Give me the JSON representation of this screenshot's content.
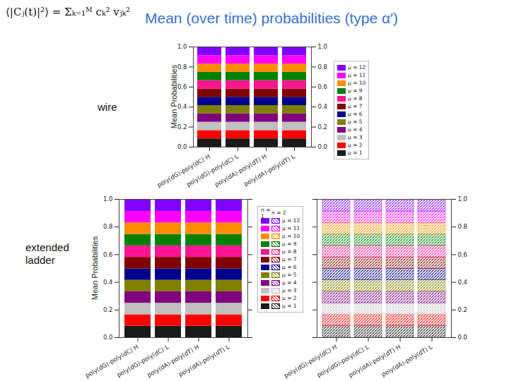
{
  "title": "Mean (over time) probabilities (type α′)",
  "formula": "⟨|Cⱼ(t)|²⟩ = Σₖ₌₁ᴹ cₖ² vⱼₖ²",
  "chart_data": [
    {
      "type": "bar",
      "stacked": true,
      "title": "wire",
      "ylabel": "Mean Probabilities",
      "categories": [
        "poly(dG)-poly(dC) H",
        "poly(dG)-poly(dC) L",
        "poly(dA)-poly(dT) H",
        "poly(dA)-poly(dT) L"
      ],
      "ylim": [
        0,
        1
      ],
      "yticks": [
        {
          "value": 0,
          "label": "0.0"
        },
        0.2,
        0.4,
        0.6,
        0.8,
        {
          "value": 1,
          "label": "1.0"
        }
      ],
      "series": [
        {
          "name": "μ = 1",
          "color": "#1a1a1a",
          "values": [
            0.083,
            0.083,
            0.083,
            0.083
          ]
        },
        {
          "name": "μ = 2",
          "color": "#ff0000",
          "values": [
            0.083,
            0.083,
            0.083,
            0.083
          ]
        },
        {
          "name": "μ = 3",
          "color": "#c0c0c0",
          "values": [
            0.083,
            0.083,
            0.083,
            0.083
          ]
        },
        {
          "name": "μ = 4",
          "color": "#800080",
          "values": [
            0.083,
            0.083,
            0.083,
            0.083
          ]
        },
        {
          "name": "μ = 5",
          "color": "#808000",
          "values": [
            0.083,
            0.083,
            0.083,
            0.083
          ]
        },
        {
          "name": "μ = 6",
          "color": "#00008b",
          "values": [
            0.083,
            0.083,
            0.083,
            0.083
          ]
        },
        {
          "name": "μ = 7",
          "color": "#800000",
          "values": [
            0.083,
            0.083,
            0.083,
            0.083
          ]
        },
        {
          "name": "μ = 8",
          "color": "#ff1493",
          "values": [
            0.083,
            0.083,
            0.083,
            0.083
          ]
        },
        {
          "name": "μ = 9",
          "color": "#008000",
          "values": [
            0.083,
            0.083,
            0.083,
            0.083
          ]
        },
        {
          "name": "μ = 10",
          "color": "#ff8c00",
          "values": [
            0.083,
            0.083,
            0.083,
            0.083
          ]
        },
        {
          "name": "μ = 11",
          "color": "#ff00ff",
          "values": [
            0.083,
            0.083,
            0.083,
            0.083
          ]
        },
        {
          "name": "μ = 12",
          "color": "#8000ff",
          "values": [
            0.083,
            0.083,
            0.083,
            0.083
          ]
        }
      ]
    },
    {
      "type": "bar",
      "stacked": true,
      "title": "extended ladder",
      "ylabel": "Mean Probabilities",
      "legend_title": "n = 1",
      "categories": [
        "poly(dG)-poly(dC) H",
        "poly(dG)-poly(dC) L",
        "poly(dA)-poly(dT) H",
        "poly(dA)-poly(dT) L"
      ],
      "ylim": [
        0,
        1
      ],
      "yticks": [
        {
          "value": 0,
          "label": "0.0"
        },
        0.2,
        0.4,
        0.6,
        0.8,
        {
          "value": 1,
          "label": "1.0"
        }
      ],
      "series": [
        {
          "name": "μ = 1",
          "color": "#1a1a1a",
          "values": [
            0.083,
            0.083,
            0.083,
            0.083
          ]
        },
        {
          "name": "μ = 2",
          "color": "#ff0000",
          "values": [
            0.083,
            0.083,
            0.083,
            0.083
          ]
        },
        {
          "name": "μ = 3",
          "color": "#c0c0c0",
          "values": [
            0.083,
            0.083,
            0.083,
            0.083
          ]
        },
        {
          "name": "μ = 4",
          "color": "#800080",
          "values": [
            0.083,
            0.083,
            0.083,
            0.083
          ]
        },
        {
          "name": "μ = 5",
          "color": "#808000",
          "values": [
            0.083,
            0.083,
            0.083,
            0.083
          ]
        },
        {
          "name": "μ = 6",
          "color": "#00008b",
          "values": [
            0.083,
            0.083,
            0.083,
            0.083
          ]
        },
        {
          "name": "μ = 7",
          "color": "#800000",
          "values": [
            0.083,
            0.083,
            0.083,
            0.083
          ]
        },
        {
          "name": "μ = 8",
          "color": "#ff1493",
          "values": [
            0.083,
            0.083,
            0.083,
            0.083
          ]
        },
        {
          "name": "μ = 9",
          "color": "#008000",
          "values": [
            0.083,
            0.083,
            0.083,
            0.083
          ]
        },
        {
          "name": "μ = 10",
          "color": "#ff8c00",
          "values": [
            0.083,
            0.083,
            0.083,
            0.083
          ]
        },
        {
          "name": "μ = 11",
          "color": "#ff00ff",
          "values": [
            0.083,
            0.083,
            0.083,
            0.083
          ]
        },
        {
          "name": "μ = 12",
          "color": "#8000ff",
          "values": [
            0.083,
            0.083,
            0.083,
            0.083
          ]
        }
      ]
    },
    {
      "type": "bar",
      "stacked": true,
      "legend_title": "n = 2",
      "categories": [
        "poly(dG)-poly(dC) H",
        "poly(dG)-poly(dC) L",
        "poly(dA)-poly(dT) H",
        "poly(dA)-poly(dT) L"
      ],
      "ylim": [
        0,
        1
      ],
      "yticks": [
        {
          "value": 0,
          "label": "0.0"
        },
        0.2,
        0.4,
        0.6,
        0.8,
        {
          "value": 1,
          "label": "1.0"
        }
      ],
      "series": [
        {
          "name": "μ = 1",
          "color": "#1a1a1a",
          "values": [
            0.083,
            0.083,
            0.083,
            0.083
          ]
        },
        {
          "name": "μ = 2",
          "color": "#ff0000",
          "values": [
            0.083,
            0.083,
            0.083,
            0.083
          ]
        },
        {
          "name": "μ = 3",
          "color": "#c0c0c0",
          "values": [
            0.083,
            0.083,
            0.083,
            0.083
          ]
        },
        {
          "name": "μ = 4",
          "color": "#800080",
          "values": [
            0.083,
            0.083,
            0.083,
            0.083
          ]
        },
        {
          "name": "μ = 5",
          "color": "#808000",
          "values": [
            0.083,
            0.083,
            0.083,
            0.083
          ]
        },
        {
          "name": "μ = 6",
          "color": "#00008b",
          "values": [
            0.083,
            0.083,
            0.083,
            0.083
          ]
        },
        {
          "name": "μ = 7",
          "color": "#800000",
          "values": [
            0.083,
            0.083,
            0.083,
            0.083
          ]
        },
        {
          "name": "μ = 8",
          "color": "#ff1493",
          "values": [
            0.083,
            0.083,
            0.083,
            0.083
          ]
        },
        {
          "name": "μ = 9",
          "color": "#008000",
          "values": [
            0.083,
            0.083,
            0.083,
            0.083
          ]
        },
        {
          "name": "μ = 10",
          "color": "#ff8c00",
          "values": [
            0.083,
            0.083,
            0.083,
            0.083
          ]
        },
        {
          "name": "μ = 11",
          "color": "#ff00ff",
          "values": [
            0.083,
            0.083,
            0.083,
            0.083
          ]
        },
        {
          "name": "μ = 12",
          "color": "#8000ff",
          "values": [
            0.083,
            0.083,
            0.083,
            0.083
          ]
        }
      ]
    }
  ]
}
